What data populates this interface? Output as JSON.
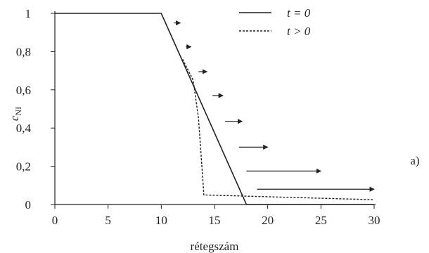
{
  "chart_data": {
    "type": "line",
    "xlabel": "rétegszám",
    "ylabel": {
      "main": "c",
      "sub": "NI"
    },
    "xlim": [
      0,
      30
    ],
    "ylim": [
      0,
      1
    ],
    "xticks": [
      0,
      5,
      10,
      15,
      20,
      25,
      30
    ],
    "xtick_labels": [
      "0",
      "5",
      "10",
      "15",
      "20",
      "25",
      "30"
    ],
    "yticks": [
      0,
      0.2,
      0.4,
      0.6,
      0.8,
      1
    ],
    "ytick_labels": [
      "0",
      "0,2",
      "0,4",
      "0,6",
      "0,8",
      "1"
    ],
    "grid": false,
    "legend_position": "top-right",
    "series": [
      {
        "name": "t = 0",
        "style": "solid",
        "x": [
          0,
          10,
          18,
          30
        ],
        "y": [
          1,
          1,
          0,
          0
        ]
      },
      {
        "name": "t > 0",
        "style": "dashed",
        "x": [
          12,
          13,
          13.5,
          14,
          30
        ],
        "y": [
          0.76,
          0.65,
          0.45,
          0.05,
          0.025
        ]
      }
    ],
    "annotations": {
      "arrows": [
        {
          "x": [
            11.2,
            11.8
          ],
          "y": 0.95
        },
        {
          "x": [
            12.3,
            12.8
          ],
          "y": 0.825
        },
        {
          "x": [
            13.5,
            14.3
          ],
          "y": 0.695
        },
        {
          "x": [
            14.8,
            15.8
          ],
          "y": 0.57
        },
        {
          "x": [
            16.0,
            17.6
          ],
          "y": 0.435
        },
        {
          "x": [
            17.3,
            20.0
          ],
          "y": 0.3
        },
        {
          "x": [
            18.0,
            25.0
          ],
          "y": 0.175
        },
        {
          "x": [
            19.0,
            30.0
          ],
          "y": 0.08
        }
      ],
      "panel_label": "a)"
    }
  }
}
